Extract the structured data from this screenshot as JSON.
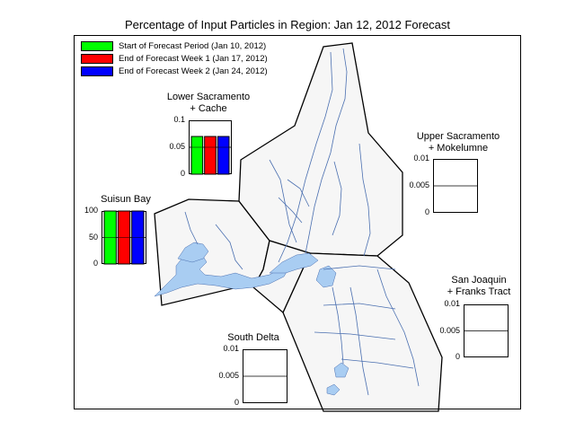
{
  "title": "Percentage of Input Particles in Region: Jan 12, 2012 Forecast",
  "legend": [
    {
      "label": "Start of Forecast Period (Jan 10, 2012)",
      "color": "#00ff00"
    },
    {
      "label": "End of Forecast Week 1 (Jan 17, 2012)",
      "color": "#ff0000"
    },
    {
      "label": "End of Forecast Week 2 (Jan 24, 2012)",
      "color": "#0000ff"
    }
  ],
  "colors": {
    "water": "#a9cdf2",
    "region_fill": "#f6f6f6",
    "channel": "#4a6fb0"
  },
  "regions": [
    {
      "label_lines": [
        "Lower Sacramento",
        "+ Cache"
      ],
      "ticks": [
        "0.1",
        "0.05",
        "0"
      ],
      "ymax": 0.1,
      "values": [
        0.07,
        0.07,
        0.07
      ]
    },
    {
      "label_lines": [
        "Upper Sacramento",
        "+ Mokelumne"
      ],
      "ticks": [
        "0.01",
        "0.005",
        "0"
      ],
      "ymax": 0.01,
      "values": [
        0,
        0,
        0
      ]
    },
    {
      "label_lines": [
        "Suisun Bay"
      ],
      "ticks": [
        "100",
        "50",
        "0"
      ],
      "ymax": 100,
      "values": [
        100,
        100,
        100
      ]
    },
    {
      "label_lines": [
        "San Joaquin",
        "+ Franks Tract"
      ],
      "ticks": [
        "0.01",
        "0.005",
        "0"
      ],
      "ymax": 0.01,
      "values": [
        0,
        0,
        0
      ]
    },
    {
      "label_lines": [
        "South Delta"
      ],
      "ticks": [
        "0.01",
        "0.005",
        "0"
      ],
      "ymax": 0.01,
      "values": [
        0,
        0,
        0
      ]
    }
  ]
}
